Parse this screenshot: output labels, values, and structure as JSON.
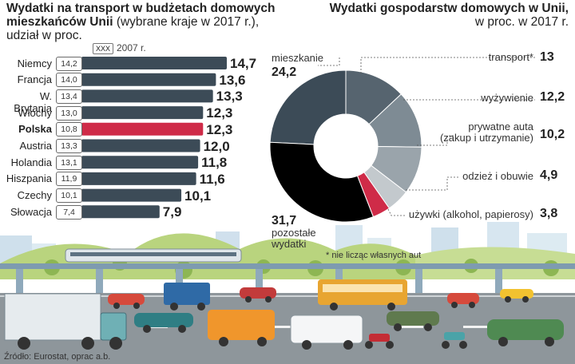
{
  "left": {
    "title": "Wydatki na transport w budżetach domowych mieszkańców Unii",
    "title_line1": "Wydatki na transport w budżetach domowych",
    "title_line2_bold": "mieszkańców Unii",
    "title_line2_rest": " (wybrane kraje w 2017 r.),",
    "title_line3": "udział w proc.",
    "legend_box": "XXX",
    "legend_label": "2007 r."
  },
  "right": {
    "title_line1": "Wydatki gospodarstw domowych w Unii,",
    "title_line2": "w proc. w 2017 r.",
    "footnote": "* nie licząc własnych aut"
  },
  "source": "Źródło: Eurostat, oprac a.b.",
  "colors": {
    "bar": "#3c4b57",
    "highlight": "#cf2b48",
    "pie": [
      "#3c4b57",
      "#56646f",
      "#7e8b94",
      "#9aa4ab",
      "#c3c9cd",
      "#cf2b48"
    ]
  },
  "chart_data": [
    {
      "type": "bar",
      "orientation": "horizontal",
      "categories": [
        "Niemcy",
        "Francja",
        "W. Brytania",
        "Włochy",
        "Polska",
        "Austria",
        "Holandia",
        "Hiszpania",
        "Czechy",
        "Słowacja"
      ],
      "values": [
        14.7,
        13.6,
        13.3,
        12.3,
        12.3,
        12.0,
        11.8,
        11.6,
        10.1,
        7.9
      ],
      "value_labels": [
        "14,7",
        "13,6",
        "13,3",
        "12,3",
        "12,3",
        "12,0",
        "11,8",
        "11,6",
        "10,1",
        "7,9"
      ],
      "values_2007": [
        14.2,
        14.0,
        13.4,
        13.0,
        10.8,
        13.3,
        13.1,
        11.9,
        10.1,
        7.4
      ],
      "values_2007_labels": [
        "14,2",
        "14,0",
        "13,4",
        "13,0",
        "10,8",
        "13,3",
        "13,1",
        "11,9",
        "10,1",
        "7,4"
      ],
      "highlight": "Polska",
      "xlim": [
        0,
        15
      ]
    },
    {
      "type": "pie",
      "donut": true,
      "labels": [
        "mieszkanie",
        "transport*",
        "wyżywienie",
        "prywatne auta (zakup i utrzymanie)",
        "odzież i obuwie",
        "używki (alkohol, papierosy)",
        "pozostałe wydatki"
      ],
      "label_lines": [
        [
          "mieszkanie"
        ],
        [
          "transport*"
        ],
        [
          "wyżywienie"
        ],
        [
          "prywatne auta",
          "(zakup i utrzymanie)"
        ],
        [
          "odzież i obuwie"
        ],
        [
          "używki (alkohol, papierosy)"
        ],
        [
          "pozostałe",
          "wydatki"
        ]
      ],
      "values": [
        24.2,
        13,
        12.2,
        10.2,
        4.9,
        3.8,
        31.7
      ],
      "value_labels": [
        "24,2",
        "13",
        "12,2",
        "10,2",
        "4,9",
        "3,8",
        "31,7"
      ]
    }
  ]
}
